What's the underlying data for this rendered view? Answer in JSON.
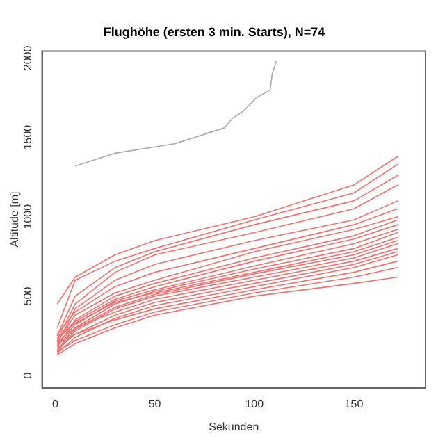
{
  "chart_data": {
    "type": "line",
    "title": "Flughöhe (ersten 3 min. Starts), N=74",
    "xlabel": "Sekunden",
    "ylabel": "Altitude [m]",
    "x": [
      1,
      10,
      30,
      50,
      100,
      150,
      172
    ],
    "xlim": [
      -6.6,
      186
    ],
    "xticks": [
      0,
      50,
      100,
      150
    ],
    "ylim": [
      -77,
      2043
    ],
    "yticks": [
      0,
      500,
      1000,
      1500,
      2000
    ],
    "grid": false,
    "legend": false,
    "marker": "none",
    "line_style": "solid",
    "series": [
      {
        "color": "#aaaaaa",
        "x": [
          10,
          30,
          60,
          85,
          89,
          95,
          101,
          108,
          109,
          111
        ],
        "values": [
          1320,
          1400,
          1460,
          1560,
          1620,
          1670,
          1750,
          1800,
          1900,
          1980
        ]
      },
      {
        "color": "#f07070",
        "values": [
          450,
          620,
          760,
          850,
          1000,
          1200,
          1380
        ]
      },
      {
        "color": "#f07070",
        "values": [
          300,
          600,
          720,
          800,
          980,
          1150,
          1330
        ]
      },
      {
        "color": "#f07070",
        "values": [
          250,
          500,
          680,
          780,
          950,
          1100,
          1260
        ]
      },
      {
        "color": "#f07070",
        "values": [
          230,
          450,
          650,
          760,
          900,
          1050,
          1200
        ]
      },
      {
        "color": "#f07070",
        "values": [
          200,
          420,
          600,
          700,
          850,
          980,
          1100
        ]
      },
      {
        "color": "#f07070",
        "values": [
          260,
          400,
          560,
          650,
          800,
          950,
          1050
        ]
      },
      {
        "color": "#f07070",
        "values": [
          220,
          380,
          520,
          600,
          780,
          920,
          1000
        ]
      },
      {
        "color": "#f07070",
        "values": [
          180,
          350,
          500,
          580,
          740,
          880,
          980
        ]
      },
      {
        "color": "#f07070",
        "values": [
          240,
          340,
          480,
          560,
          720,
          860,
          950
        ]
      },
      {
        "color": "#f07070",
        "values": [
          200,
          320,
          470,
          540,
          690,
          830,
          920
        ]
      },
      {
        "color": "#f07070",
        "values": [
          160,
          300,
          450,
          530,
          670,
          800,
          900
        ]
      },
      {
        "color": "#f07070",
        "values": [
          230,
          330,
          460,
          520,
          650,
          780,
          870
        ]
      },
      {
        "color": "#f07070",
        "values": [
          190,
          290,
          430,
          510,
          640,
          760,
          850
        ]
      },
      {
        "color": "#f07070",
        "values": [
          150,
          280,
          420,
          500,
          620,
          740,
          830
        ]
      },
      {
        "color": "#f07070",
        "values": [
          210,
          300,
          400,
          480,
          600,
          720,
          800
        ]
      },
      {
        "color": "#f07070",
        "values": [
          170,
          260,
          380,
          460,
          580,
          700,
          780
        ]
      },
      {
        "color": "#f07070",
        "values": [
          140,
          240,
          360,
          440,
          560,
          680,
          760
        ]
      },
      {
        "color": "#f07070",
        "values": [
          200,
          260,
          350,
          420,
          540,
          650,
          720
        ]
      },
      {
        "color": "#f07070",
        "values": [
          150,
          220,
          320,
          400,
          520,
          620,
          680
        ]
      },
      {
        "color": "#f07070",
        "values": [
          130,
          200,
          300,
          380,
          500,
          580,
          620
        ]
      }
    ]
  }
}
